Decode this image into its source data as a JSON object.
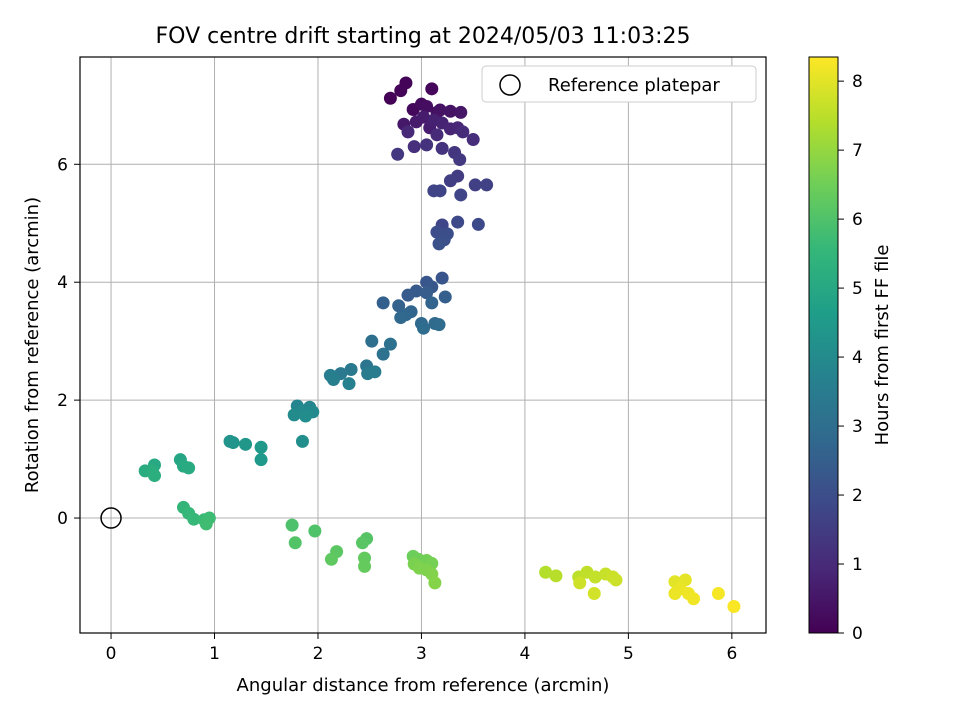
{
  "chart_data": {
    "type": "scatter",
    "title": "FOV centre drift starting at 2024/05/03 11:03:25",
    "xlabel": "Angular distance from reference (arcmin)",
    "ylabel": "Rotation from reference (arcmin)",
    "xlim": [
      -0.3,
      6.33
    ],
    "ylim": [
      -1.95,
      7.82
    ],
    "xticks": [
      0,
      1,
      2,
      3,
      4,
      5,
      6
    ],
    "yticks": [
      0,
      2,
      4,
      6
    ],
    "grid": true,
    "legend": {
      "placement": "top-right",
      "label": "Reference platepar",
      "marker": "open-circle"
    },
    "reference_point": {
      "x": 0,
      "y": 0
    },
    "colorbar": {
      "label": "Hours from first FF file",
      "colormap": "viridis",
      "range": [
        0,
        8.35
      ],
      "ticks": [
        0,
        1,
        2,
        3,
        4,
        5,
        6,
        7,
        8
      ],
      "colors": [
        "#440154",
        "#482878",
        "#3e4989",
        "#31688e",
        "#26828e",
        "#1f9e89",
        "#35b779",
        "#6ece58",
        "#b5de2b",
        "#fde725"
      ]
    },
    "points": [
      {
        "x": 2.7,
        "y": 7.12,
        "c": 0.05
      },
      {
        "x": 2.8,
        "y": 7.25,
        "c": 0.08
      },
      {
        "x": 2.85,
        "y": 7.38,
        "c": 0.1
      },
      {
        "x": 3.1,
        "y": 7.28,
        "c": 0.15
      },
      {
        "x": 2.92,
        "y": 6.93,
        "c": 0.2
      },
      {
        "x": 3.0,
        "y": 7.02,
        "c": 0.25
      },
      {
        "x": 3.05,
        "y": 6.98,
        "c": 0.3
      },
      {
        "x": 3.15,
        "y": 6.88,
        "c": 0.35
      },
      {
        "x": 3.18,
        "y": 6.92,
        "c": 0.4
      },
      {
        "x": 3.28,
        "y": 6.9,
        "c": 0.45
      },
      {
        "x": 3.38,
        "y": 6.88,
        "c": 0.5
      },
      {
        "x": 2.83,
        "y": 6.68,
        "c": 0.55
      },
      {
        "x": 2.95,
        "y": 6.72,
        "c": 0.6
      },
      {
        "x": 3.02,
        "y": 6.8,
        "c": 0.65
      },
      {
        "x": 3.08,
        "y": 6.62,
        "c": 0.7
      },
      {
        "x": 3.12,
        "y": 6.75,
        "c": 0.75
      },
      {
        "x": 3.2,
        "y": 6.7,
        "c": 0.8
      },
      {
        "x": 3.28,
        "y": 6.6,
        "c": 0.85
      },
      {
        "x": 3.35,
        "y": 6.62,
        "c": 0.9
      },
      {
        "x": 2.87,
        "y": 6.55,
        "c": 0.95
      },
      {
        "x": 3.15,
        "y": 6.5,
        "c": 1.0
      },
      {
        "x": 3.4,
        "y": 6.55,
        "c": 1.05
      },
      {
        "x": 3.5,
        "y": 6.42,
        "c": 1.1
      },
      {
        "x": 2.93,
        "y": 6.3,
        "c": 1.15
      },
      {
        "x": 3.05,
        "y": 6.33,
        "c": 1.2
      },
      {
        "x": 3.2,
        "y": 6.27,
        "c": 1.25
      },
      {
        "x": 3.32,
        "y": 6.2,
        "c": 1.3
      },
      {
        "x": 2.77,
        "y": 6.17,
        "c": 1.35
      },
      {
        "x": 3.37,
        "y": 6.08,
        "c": 1.4
      },
      {
        "x": 3.35,
        "y": 5.8,
        "c": 1.5
      },
      {
        "x": 3.28,
        "y": 5.72,
        "c": 1.55
      },
      {
        "x": 3.52,
        "y": 5.65,
        "c": 1.6
      },
      {
        "x": 3.63,
        "y": 5.65,
        "c": 1.65
      },
      {
        "x": 3.12,
        "y": 5.55,
        "c": 1.7
      },
      {
        "x": 3.18,
        "y": 5.55,
        "c": 1.72
      },
      {
        "x": 3.38,
        "y": 5.48,
        "c": 1.75
      },
      {
        "x": 3.2,
        "y": 4.97,
        "c": 1.8
      },
      {
        "x": 3.35,
        "y": 5.02,
        "c": 1.85
      },
      {
        "x": 3.55,
        "y": 4.98,
        "c": 1.9
      },
      {
        "x": 3.15,
        "y": 4.85,
        "c": 1.95
      },
      {
        "x": 3.25,
        "y": 4.82,
        "c": 2.0
      },
      {
        "x": 3.22,
        "y": 4.72,
        "c": 2.05
      },
      {
        "x": 3.17,
        "y": 4.65,
        "c": 2.1
      },
      {
        "x": 3.2,
        "y": 4.07,
        "c": 2.2
      },
      {
        "x": 3.05,
        "y": 4.0,
        "c": 2.25
      },
      {
        "x": 3.1,
        "y": 3.92,
        "c": 2.3
      },
      {
        "x": 2.95,
        "y": 3.85,
        "c": 2.35
      },
      {
        "x": 2.87,
        "y": 3.78,
        "c": 2.4
      },
      {
        "x": 3.05,
        "y": 3.82,
        "c": 2.45
      },
      {
        "x": 3.23,
        "y": 3.75,
        "c": 2.5
      },
      {
        "x": 2.63,
        "y": 3.65,
        "c": 2.55
      },
      {
        "x": 2.78,
        "y": 3.6,
        "c": 2.6
      },
      {
        "x": 3.1,
        "y": 3.65,
        "c": 2.65
      },
      {
        "x": 2.9,
        "y": 3.5,
        "c": 2.7
      },
      {
        "x": 2.85,
        "y": 3.45,
        "c": 2.75
      },
      {
        "x": 2.8,
        "y": 3.4,
        "c": 2.8
      },
      {
        "x": 3.0,
        "y": 3.3,
        "c": 2.85
      },
      {
        "x": 3.13,
        "y": 3.3,
        "c": 2.9
      },
      {
        "x": 3.17,
        "y": 3.28,
        "c": 2.92
      },
      {
        "x": 3.02,
        "y": 3.22,
        "c": 2.95
      },
      {
        "x": 2.52,
        "y": 3.0,
        "c": 3.05
      },
      {
        "x": 2.7,
        "y": 2.95,
        "c": 3.1
      },
      {
        "x": 2.63,
        "y": 2.78,
        "c": 3.15
      },
      {
        "x": 2.47,
        "y": 2.58,
        "c": 3.3
      },
      {
        "x": 2.32,
        "y": 2.52,
        "c": 3.35
      },
      {
        "x": 2.22,
        "y": 2.45,
        "c": 3.4
      },
      {
        "x": 2.55,
        "y": 2.48,
        "c": 3.45
      },
      {
        "x": 2.48,
        "y": 2.45,
        "c": 3.5
      },
      {
        "x": 2.12,
        "y": 2.42,
        "c": 3.55
      },
      {
        "x": 2.15,
        "y": 2.35,
        "c": 3.6
      },
      {
        "x": 2.3,
        "y": 2.28,
        "c": 3.65
      },
      {
        "x": 1.8,
        "y": 1.9,
        "c": 3.8
      },
      {
        "x": 1.92,
        "y": 1.88,
        "c": 3.85
      },
      {
        "x": 1.85,
        "y": 1.82,
        "c": 3.9
      },
      {
        "x": 1.95,
        "y": 1.8,
        "c": 3.95
      },
      {
        "x": 1.77,
        "y": 1.75,
        "c": 4.0
      },
      {
        "x": 1.88,
        "y": 1.73,
        "c": 4.05
      },
      {
        "x": 1.85,
        "y": 1.3,
        "c": 4.15
      },
      {
        "x": 1.15,
        "y": 1.3,
        "c": 4.3
      },
      {
        "x": 1.18,
        "y": 1.28,
        "c": 4.35
      },
      {
        "x": 1.3,
        "y": 1.25,
        "c": 4.4
      },
      {
        "x": 1.45,
        "y": 1.2,
        "c": 4.45
      },
      {
        "x": 1.45,
        "y": 0.99,
        "c": 4.5
      },
      {
        "x": 0.67,
        "y": 0.99,
        "c": 4.9
      },
      {
        "x": 0.42,
        "y": 0.9,
        "c": 5.0
      },
      {
        "x": 0.7,
        "y": 0.88,
        "c": 5.05
      },
      {
        "x": 0.75,
        "y": 0.85,
        "c": 5.1
      },
      {
        "x": 0.33,
        "y": 0.8,
        "c": 5.15
      },
      {
        "x": 0.4,
        "y": 0.8,
        "c": 5.2
      },
      {
        "x": 0.42,
        "y": 0.72,
        "c": 5.25
      },
      {
        "x": 0.7,
        "y": 0.18,
        "c": 5.5
      },
      {
        "x": 0.75,
        "y": 0.08,
        "c": 5.55
      },
      {
        "x": 0.8,
        "y": -0.02,
        "c": 5.6
      },
      {
        "x": 0.9,
        "y": -0.03,
        "c": 5.65
      },
      {
        "x": 0.95,
        "y": 0.0,
        "c": 5.7
      },
      {
        "x": 0.92,
        "y": -0.1,
        "c": 5.75
      },
      {
        "x": 1.75,
        "y": -0.12,
        "c": 5.95
      },
      {
        "x": 1.97,
        "y": -0.22,
        "c": 6.0
      },
      {
        "x": 1.78,
        "y": -0.42,
        "c": 6.05
      },
      {
        "x": 2.47,
        "y": -0.35,
        "c": 6.1
      },
      {
        "x": 2.43,
        "y": -0.42,
        "c": 6.15
      },
      {
        "x": 2.18,
        "y": -0.57,
        "c": 6.2
      },
      {
        "x": 2.13,
        "y": -0.7,
        "c": 6.25
      },
      {
        "x": 2.45,
        "y": -0.68,
        "c": 6.3
      },
      {
        "x": 2.45,
        "y": -0.82,
        "c": 6.35
      },
      {
        "x": 2.92,
        "y": -0.65,
        "c": 6.45
      },
      {
        "x": 2.97,
        "y": -0.7,
        "c": 6.5
      },
      {
        "x": 3.05,
        "y": -0.72,
        "c": 6.55
      },
      {
        "x": 3.1,
        "y": -0.77,
        "c": 6.6
      },
      {
        "x": 2.93,
        "y": -0.78,
        "c": 6.65
      },
      {
        "x": 2.98,
        "y": -0.85,
        "c": 6.7
      },
      {
        "x": 3.05,
        "y": -0.88,
        "c": 6.72
      },
      {
        "x": 3.1,
        "y": -0.95,
        "c": 6.75
      },
      {
        "x": 3.13,
        "y": -1.1,
        "c": 6.8
      },
      {
        "x": 4.2,
        "y": -0.92,
        "c": 7.4
      },
      {
        "x": 4.3,
        "y": -0.98,
        "c": 7.45
      },
      {
        "x": 4.52,
        "y": -1.0,
        "c": 7.5
      },
      {
        "x": 4.6,
        "y": -0.92,
        "c": 7.55
      },
      {
        "x": 4.68,
        "y": -1.0,
        "c": 7.6
      },
      {
        "x": 4.78,
        "y": -0.95,
        "c": 7.65
      },
      {
        "x": 4.85,
        "y": -1.0,
        "c": 7.7
      },
      {
        "x": 4.88,
        "y": -1.05,
        "c": 7.72
      },
      {
        "x": 4.53,
        "y": -1.1,
        "c": 7.75
      },
      {
        "x": 4.67,
        "y": -1.28,
        "c": 7.8
      },
      {
        "x": 5.45,
        "y": -1.08,
        "c": 8.0
      },
      {
        "x": 5.55,
        "y": -1.05,
        "c": 8.05
      },
      {
        "x": 5.5,
        "y": -1.2,
        "c": 8.1
      },
      {
        "x": 5.45,
        "y": -1.28,
        "c": 8.12
      },
      {
        "x": 5.58,
        "y": -1.28,
        "c": 8.15
      },
      {
        "x": 5.63,
        "y": -1.37,
        "c": 8.2
      },
      {
        "x": 5.87,
        "y": -1.28,
        "c": 8.25
      },
      {
        "x": 6.02,
        "y": -1.5,
        "c": 8.3
      }
    ]
  }
}
